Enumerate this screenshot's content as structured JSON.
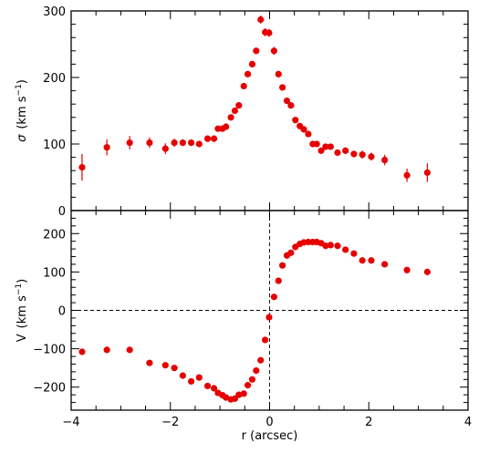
{
  "chart_data": {
    "type": "scatter",
    "xlabel": "r (arcsec)",
    "xlim": [
      -4,
      4
    ],
    "x_ticks": [
      "−4",
      "−2",
      "0",
      "2",
      "4"
    ],
    "panels": [
      {
        "id": "sigma",
        "ylabel_symbol": "σ",
        "ylabel_text": "(km s",
        "ylabel_sup": "−1",
        "ylabel_close": ")",
        "ylim": [
          0,
          300
        ],
        "y_ticks": [
          0,
          100,
          200,
          300
        ],
        "y_tick_labels": [
          "0",
          "100",
          "200",
          "300"
        ],
        "color": "#e60000",
        "points": [
          {
            "x": -3.78,
            "y": 65,
            "err": 20
          },
          {
            "x": -3.28,
            "y": 95,
            "err": 12
          },
          {
            "x": -2.82,
            "y": 102,
            "err": 10
          },
          {
            "x": -2.42,
            "y": 102,
            "err": 8
          },
          {
            "x": -2.1,
            "y": 93,
            "err": 8
          },
          {
            "x": -1.92,
            "y": 102,
            "err": 6
          },
          {
            "x": -1.75,
            "y": 102,
            "err": 5
          },
          {
            "x": -1.58,
            "y": 102,
            "err": 5
          },
          {
            "x": -1.42,
            "y": 100,
            "err": 4
          },
          {
            "x": -1.25,
            "y": 108,
            "err": 4
          },
          {
            "x": -1.12,
            "y": 108,
            "err": 4
          },
          {
            "x": -1.04,
            "y": 123,
            "err": 4
          },
          {
            "x": -0.95,
            "y": 123,
            "err": 4
          },
          {
            "x": -0.88,
            "y": 126,
            "err": 4
          },
          {
            "x": -0.78,
            "y": 140,
            "err": 4
          },
          {
            "x": -0.7,
            "y": 150,
            "err": 4
          },
          {
            "x": -0.62,
            "y": 158,
            "err": 4
          },
          {
            "x": -0.52,
            "y": 187,
            "err": 4
          },
          {
            "x": -0.44,
            "y": 205,
            "err": 4
          },
          {
            "x": -0.35,
            "y": 220,
            "err": 4
          },
          {
            "x": -0.27,
            "y": 240,
            "err": 5
          },
          {
            "x": -0.18,
            "y": 287,
            "err": 6
          },
          {
            "x": -0.09,
            "y": 268,
            "err": 6
          },
          {
            "x": -0.01,
            "y": 267,
            "err": 6
          },
          {
            "x": 0.09,
            "y": 240,
            "err": 6
          },
          {
            "x": 0.18,
            "y": 205,
            "err": 5
          },
          {
            "x": 0.26,
            "y": 185,
            "err": 4
          },
          {
            "x": 0.35,
            "y": 165,
            "err": 4
          },
          {
            "x": 0.43,
            "y": 158,
            "err": 4
          },
          {
            "x": 0.52,
            "y": 136,
            "err": 4
          },
          {
            "x": 0.61,
            "y": 127,
            "err": 4
          },
          {
            "x": 0.69,
            "y": 122,
            "err": 4
          },
          {
            "x": 0.78,
            "y": 115,
            "err": 4
          },
          {
            "x": 0.87,
            "y": 100,
            "err": 4
          },
          {
            "x": 0.95,
            "y": 100,
            "err": 4
          },
          {
            "x": 1.04,
            "y": 90,
            "err": 4
          },
          {
            "x": 1.13,
            "y": 96,
            "err": 4
          },
          {
            "x": 1.23,
            "y": 96,
            "err": 4
          },
          {
            "x": 1.37,
            "y": 87,
            "err": 4
          },
          {
            "x": 1.53,
            "y": 90,
            "err": 5
          },
          {
            "x": 1.7,
            "y": 85,
            "err": 5
          },
          {
            "x": 1.87,
            "y": 84,
            "err": 6
          },
          {
            "x": 2.05,
            "y": 81,
            "err": 6
          },
          {
            "x": 2.32,
            "y": 76,
            "err": 8
          },
          {
            "x": 2.77,
            "y": 53,
            "err": 10
          },
          {
            "x": 3.18,
            "y": 57,
            "err": 14
          }
        ]
      },
      {
        "id": "velocity",
        "ylabel_symbol": "V",
        "ylabel_text": "(km s",
        "ylabel_sup": "−1",
        "ylabel_close": ")",
        "ylim": [
          -260,
          260
        ],
        "y_ticks": [
          -200,
          -100,
          0,
          100,
          200
        ],
        "y_tick_labels": [
          "−200",
          "−100",
          "0",
          "100",
          "200"
        ],
        "zero_line": true,
        "color": "#e60000",
        "points": [
          {
            "x": -3.78,
            "y": -108,
            "err": 8
          },
          {
            "x": -3.28,
            "y": -103,
            "err": 6
          },
          {
            "x": -2.82,
            "y": -103,
            "err": 5
          },
          {
            "x": -2.42,
            "y": -137,
            "err": 4
          },
          {
            "x": -2.1,
            "y": -143,
            "err": 4
          },
          {
            "x": -1.92,
            "y": -150,
            "err": 4
          },
          {
            "x": -1.75,
            "y": -170,
            "err": 4
          },
          {
            "x": -1.58,
            "y": -185,
            "err": 4
          },
          {
            "x": -1.42,
            "y": -175,
            "err": 4
          },
          {
            "x": -1.25,
            "y": -197,
            "err": 4
          },
          {
            "x": -1.12,
            "y": -203,
            "err": 4
          },
          {
            "x": -1.04,
            "y": -215,
            "err": 4
          },
          {
            "x": -0.95,
            "y": -221,
            "err": 4
          },
          {
            "x": -0.88,
            "y": -227,
            "err": 4
          },
          {
            "x": -0.78,
            "y": -232,
            "err": 4
          },
          {
            "x": -0.7,
            "y": -230,
            "err": 4
          },
          {
            "x": -0.62,
            "y": -220,
            "err": 4
          },
          {
            "x": -0.52,
            "y": -217,
            "err": 4
          },
          {
            "x": -0.44,
            "y": -195,
            "err": 4
          },
          {
            "x": -0.35,
            "y": -180,
            "err": 4
          },
          {
            "x": -0.27,
            "y": -157,
            "err": 4
          },
          {
            "x": -0.18,
            "y": -130,
            "err": 4
          },
          {
            "x": -0.09,
            "y": -77,
            "err": 4
          },
          {
            "x": -0.01,
            "y": -18,
            "err": 4
          },
          {
            "x": 0.09,
            "y": 35,
            "err": 4
          },
          {
            "x": 0.18,
            "y": 77,
            "err": 4
          },
          {
            "x": 0.26,
            "y": 117,
            "err": 4
          },
          {
            "x": 0.35,
            "y": 143,
            "err": 4
          },
          {
            "x": 0.43,
            "y": 150,
            "err": 4
          },
          {
            "x": 0.52,
            "y": 165,
            "err": 4
          },
          {
            "x": 0.61,
            "y": 173,
            "err": 4
          },
          {
            "x": 0.69,
            "y": 177,
            "err": 4
          },
          {
            "x": 0.78,
            "y": 178,
            "err": 4
          },
          {
            "x": 0.87,
            "y": 178,
            "err": 4
          },
          {
            "x": 0.95,
            "y": 178,
            "err": 4
          },
          {
            "x": 1.04,
            "y": 175,
            "err": 4
          },
          {
            "x": 1.13,
            "y": 168,
            "err": 4
          },
          {
            "x": 1.23,
            "y": 170,
            "err": 4
          },
          {
            "x": 1.37,
            "y": 168,
            "err": 4
          },
          {
            "x": 1.53,
            "y": 158,
            "err": 4
          },
          {
            "x": 1.7,
            "y": 148,
            "err": 4
          },
          {
            "x": 1.87,
            "y": 130,
            "err": 4
          },
          {
            "x": 2.05,
            "y": 130,
            "err": 4
          },
          {
            "x": 2.32,
            "y": 120,
            "err": 4
          },
          {
            "x": 2.77,
            "y": 105,
            "err": 5
          },
          {
            "x": 3.18,
            "y": 100,
            "err": 6
          }
        ]
      }
    ]
  }
}
